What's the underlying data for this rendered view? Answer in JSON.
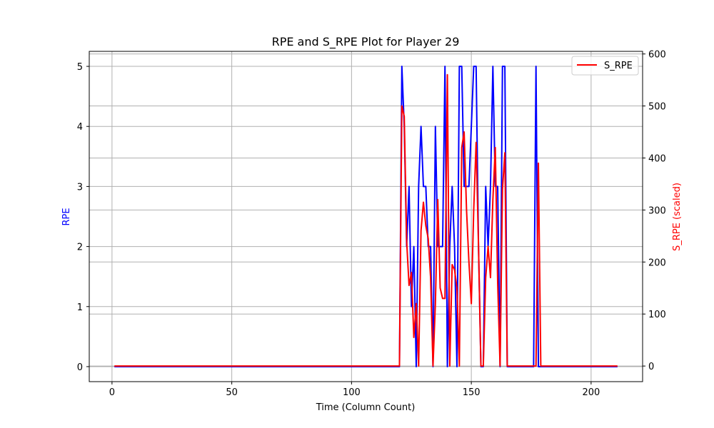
{
  "chart_data": {
    "type": "line",
    "title": "RPE and S_RPE Plot for Player 29",
    "xlabel": "Time (Column Count)",
    "ylabel_left": "RPE",
    "ylabel_right": "S_RPE (scaled)",
    "xlim": [
      -9.5,
      221.5
    ],
    "ylim_left": [
      -0.25,
      5.25
    ],
    "ylim_right": [
      -30,
      605
    ],
    "x_ticks": [
      0,
      50,
      100,
      150,
      200
    ],
    "y_ticks_left": [
      0,
      1,
      2,
      3,
      4,
      5
    ],
    "y_ticks_right": [
      0,
      100,
      200,
      300,
      400,
      500,
      600
    ],
    "grid": true,
    "legend": {
      "placement": "top-right",
      "entries": [
        "S_RPE"
      ]
    },
    "colors": {
      "RPE": "#0000ff",
      "S_RPE": "#ff0000",
      "grid": "#b0b0b0"
    },
    "series": [
      {
        "name": "RPE",
        "axis": "left",
        "points": [
          [
            1,
            0
          ],
          [
            120,
            0
          ],
          [
            121,
            5
          ],
          [
            122,
            4
          ],
          [
            123,
            2
          ],
          [
            124,
            3
          ],
          [
            125,
            1
          ],
          [
            126,
            2
          ],
          [
            127,
            0
          ],
          [
            128,
            3
          ],
          [
            129,
            4
          ],
          [
            130,
            3
          ],
          [
            131,
            3
          ],
          [
            132,
            2
          ],
          [
            133,
            2
          ],
          [
            134,
            0
          ],
          [
            135,
            4
          ],
          [
            136,
            2
          ],
          [
            137,
            2
          ],
          [
            138,
            2
          ],
          [
            139,
            5
          ],
          [
            140,
            0
          ],
          [
            141,
            2
          ],
          [
            142,
            3
          ],
          [
            143,
            2
          ],
          [
            144,
            0
          ],
          [
            145,
            5
          ],
          [
            146,
            5
          ],
          [
            147,
            3
          ],
          [
            148,
            3
          ],
          [
            149,
            3
          ],
          [
            150,
            4
          ],
          [
            151,
            5
          ],
          [
            152,
            5
          ],
          [
            153,
            2
          ],
          [
            154,
            0
          ],
          [
            155,
            0
          ],
          [
            156,
            3
          ],
          [
            157,
            2
          ],
          [
            158,
            3
          ],
          [
            159,
            5
          ],
          [
            160,
            3
          ],
          [
            161,
            3
          ],
          [
            162,
            0
          ],
          [
            163,
            5
          ],
          [
            164,
            5
          ],
          [
            165,
            0
          ],
          [
            176,
            0
          ],
          [
            177,
            5
          ],
          [
            178,
            0
          ],
          [
            211,
            0
          ]
        ]
      },
      {
        "name": "S_RPE",
        "axis": "right",
        "points": [
          [
            1,
            0
          ],
          [
            120,
            0
          ],
          [
            121,
            500
          ],
          [
            122,
            480
          ],
          [
            123,
            240
          ],
          [
            124,
            155
          ],
          [
            125,
            180
          ],
          [
            126,
            55
          ],
          [
            127,
            120
          ],
          [
            128,
            0
          ],
          [
            129,
            260
          ],
          [
            130,
            315
          ],
          [
            131,
            270
          ],
          [
            132,
            245
          ],
          [
            133,
            170
          ],
          [
            134,
            0
          ],
          [
            135,
            120
          ],
          [
            136,
            320
          ],
          [
            137,
            150
          ],
          [
            138,
            130
          ],
          [
            139,
            130
          ],
          [
            140,
            560
          ],
          [
            141,
            0
          ],
          [
            142,
            195
          ],
          [
            143,
            185
          ],
          [
            144,
            150
          ],
          [
            145,
            0
          ],
          [
            146,
            420
          ],
          [
            147,
            450
          ],
          [
            148,
            300
          ],
          [
            149,
            200
          ],
          [
            150,
            120
          ],
          [
            151,
            300
          ],
          [
            152,
            430
          ],
          [
            153,
            230
          ],
          [
            154,
            0
          ],
          [
            155,
            0
          ],
          [
            156,
            170
          ],
          [
            157,
            230
          ],
          [
            158,
            170
          ],
          [
            159,
            320
          ],
          [
            160,
            420
          ],
          [
            161,
            160
          ],
          [
            162,
            0
          ],
          [
            163,
            340
          ],
          [
            164,
            410
          ],
          [
            165,
            0
          ],
          [
            177,
            0
          ],
          [
            178,
            390
          ],
          [
            179,
            0
          ],
          [
            211,
            0
          ]
        ]
      }
    ]
  }
}
